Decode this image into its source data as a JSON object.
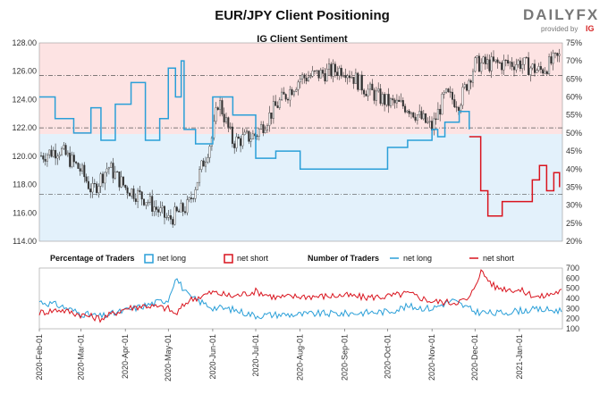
{
  "header": {
    "title": "EUR/JPY Client Positioning",
    "brand_main": "DAILYFX",
    "brand_sub": "provided by",
    "brand_ig": "IG"
  },
  "colors": {
    "net_long": "#2a9fd8",
    "net_short": "#d9141e",
    "upper_band": "#fde3e3",
    "lower_band": "#e3f1fb",
    "candle_up": "#ffffff",
    "candle_down": "#333333"
  },
  "chart_data": [
    {
      "type": "line",
      "title": "IG Client Sentiment",
      "left_axis": {
        "ticks": [
          "128.00",
          "126.00",
          "124.00",
          "122.00",
          "120.00",
          "118.00",
          "116.00",
          "114.00"
        ],
        "range": [
          114,
          128
        ]
      },
      "right_axis": {
        "ticks": [
          "75%",
          "70%",
          "65%",
          "60%",
          "55%",
          "50%",
          "45%",
          "40%",
          "35%",
          "30%",
          "25%",
          "20%"
        ],
        "range": [
          20,
          75
        ]
      },
      "price_reference_lines": [
        125.7,
        122.0,
        117.3
      ],
      "series": [
        {
          "name": "net long",
          "axis": "right",
          "dates": [
            "2020-02-01",
            "2020-02-12",
            "2020-02-25",
            "2020-03-08",
            "2020-03-15",
            "2020-03-25",
            "2020-04-05",
            "2020-04-15",
            "2020-04-25",
            "2020-05-01",
            "2020-05-06",
            "2020-05-10",
            "2020-05-12",
            "2020-05-20",
            "2020-06-01",
            "2020-06-15",
            "2020-07-01",
            "2020-07-15",
            "2020-08-01",
            "2020-08-15",
            "2020-09-01",
            "2020-09-15",
            "2020-10-01",
            "2020-10-15",
            "2020-11-01",
            "2020-11-05",
            "2020-11-10",
            "2020-11-20",
            "2020-11-27"
          ],
          "values": [
            60,
            54,
            50,
            57,
            48,
            58,
            64,
            48,
            54,
            68,
            60,
            70,
            51,
            47,
            60,
            55,
            43,
            45,
            40,
            40,
            40,
            40,
            46,
            48,
            51,
            49,
            53,
            56,
            51
          ]
        },
        {
          "name": "net short",
          "axis": "right",
          "dates": [
            "2020-11-27",
            "2020-12-05",
            "2020-12-10",
            "2020-12-20",
            "2021-01-01",
            "2021-01-10",
            "2021-01-15",
            "2021-01-20",
            "2021-01-25",
            "2021-01-29"
          ],
          "values": [
            49,
            34,
            27,
            31,
            31,
            37,
            41,
            34,
            39,
            35
          ]
        },
        {
          "name": "EUR/JPY",
          "axis": "left",
          "style": "candlestick",
          "dates": [
            "2020-02-01",
            "2020-02-15",
            "2020-03-01",
            "2020-03-09",
            "2020-03-20",
            "2020-04-01",
            "2020-04-15",
            "2020-05-01",
            "2020-05-15",
            "2020-06-01",
            "2020-06-05",
            "2020-06-15",
            "2020-07-01",
            "2020-07-15",
            "2020-08-01",
            "2020-08-15",
            "2020-09-01",
            "2020-09-15",
            "2020-10-01",
            "2020-10-15",
            "2020-11-01",
            "2020-11-10",
            "2020-11-20",
            "2020-12-01",
            "2020-12-15",
            "2021-01-01",
            "2021-01-15",
            "2021-01-29"
          ],
          "values": [
            120.0,
            120.5,
            119.0,
            117.5,
            119.3,
            117.8,
            117.0,
            115.5,
            116.5,
            121.5,
            124.0,
            121.0,
            121.5,
            123.5,
            125.5,
            125.8,
            126.2,
            124.8,
            123.8,
            123.5,
            122.0,
            124.3,
            123.8,
            126.5,
            126.5,
            126.6,
            126.0,
            127.0
          ]
        }
      ],
      "legend_position": "top"
    },
    {
      "type": "line",
      "legend": {
        "percentage_title": "Percentage of Traders",
        "pct_long": "net long",
        "pct_short": "net short",
        "number_title": "Number of Traders",
        "num_long": "net long",
        "num_short": "net short"
      },
      "right_axis": {
        "ticks": [
          "700",
          "600",
          "500",
          "400",
          "300",
          "200",
          "100"
        ],
        "range": [
          100,
          700
        ]
      },
      "x_ticks": [
        "2020-Feb-01",
        "2020-Mar-01",
        "2020-Apr-01",
        "2020-May-01",
        "2020-Jun-01",
        "2020-Jul-01",
        "2020-Aug-01",
        "2020-Sep-01",
        "2020-Oct-01",
        "2020-Nov-01",
        "2020-Dec-01",
        "2021-Jan-01"
      ],
      "series": [
        {
          "name": "net long",
          "dates": [
            "2020-02-01",
            "2020-02-15",
            "2020-03-01",
            "2020-03-15",
            "2020-04-01",
            "2020-04-15",
            "2020-05-01",
            "2020-05-06",
            "2020-05-15",
            "2020-06-01",
            "2020-06-15",
            "2020-07-01",
            "2020-07-15",
            "2020-08-01",
            "2020-08-15",
            "2020-09-01",
            "2020-09-15",
            "2020-10-01",
            "2020-10-15",
            "2020-11-01",
            "2020-11-15",
            "2020-12-01",
            "2020-12-15",
            "2021-01-01",
            "2021-01-15",
            "2021-01-29"
          ],
          "values": [
            370,
            330,
            250,
            220,
            280,
            330,
            390,
            610,
            420,
            310,
            290,
            230,
            240,
            240,
            250,
            250,
            260,
            270,
            320,
            300,
            380,
            270,
            250,
            280,
            290,
            280
          ]
        },
        {
          "name": "net short",
          "dates": [
            "2020-02-01",
            "2020-02-15",
            "2020-03-01",
            "2020-03-15",
            "2020-04-01",
            "2020-04-15",
            "2020-05-01",
            "2020-05-06",
            "2020-05-15",
            "2020-06-01",
            "2020-06-15",
            "2020-07-01",
            "2020-07-15",
            "2020-08-01",
            "2020-08-15",
            "2020-09-01",
            "2020-09-15",
            "2020-10-01",
            "2020-10-15",
            "2020-11-01",
            "2020-11-15",
            "2020-11-27",
            "2020-12-05",
            "2020-12-15",
            "2021-01-01",
            "2021-01-15",
            "2021-01-29"
          ],
          "values": [
            260,
            290,
            240,
            200,
            300,
            330,
            300,
            240,
            380,
            460,
            420,
            470,
            410,
            420,
            420,
            430,
            410,
            420,
            450,
            370,
            360,
            390,
            670,
            510,
            480,
            410,
            470
          ]
        }
      ]
    }
  ]
}
